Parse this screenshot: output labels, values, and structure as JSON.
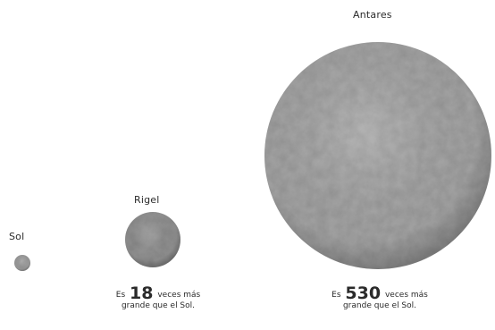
{
  "stars": [
    {
      "name": "Sol",
      "color": "#a8a8a8"
    },
    {
      "name": "Rigel",
      "color": "#9c9c9c"
    },
    {
      "name": "Antares",
      "color": "#b0b0b0"
    }
  ],
  "captions": {
    "rigel": {
      "prefix": "Es",
      "number": "18",
      "suffix": "veces más",
      "line2": "grande que el Sol."
    },
    "antares": {
      "prefix": "Es",
      "number": "530",
      "suffix": "veces más",
      "line2": "grande que el Sol."
    }
  }
}
